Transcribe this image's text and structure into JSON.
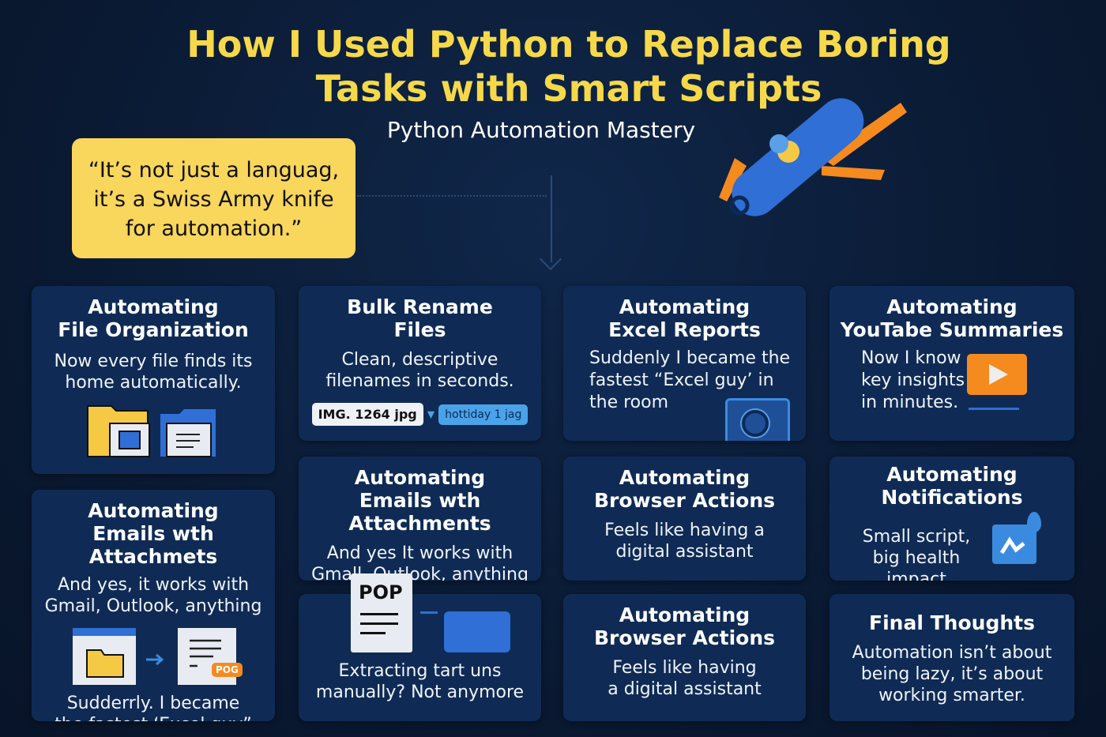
{
  "header": {
    "title_line1": "How I Used Python to Replace Boring",
    "title_line2": "Tasks with Smart Scripts",
    "subtitle": "Python Automation Mastery"
  },
  "quote": {
    "line1": "“It’s not just a languag,",
    "line2": "it’s a Swiss Army knife",
    "line3": "for automation.”"
  },
  "colors": {
    "background": "#0a1a33",
    "card": "#0f2b55",
    "title": "#f6d94a",
    "quote_bg": "#f9d65c",
    "accent_orange": "#f58a1f",
    "accent_blue": "#2f6fd6"
  },
  "cards": [
    {
      "title1": "Automating",
      "title2": "File Organization",
      "desc1": "Now every file finds its",
      "desc2": "home automatically.",
      "icon": "folders-icon"
    },
    {
      "title1": "Automating",
      "title2": "Emails wth Attachmets",
      "desc1": "And yes, it works with",
      "desc2": "Gmail, Outlook, anything",
      "desc3": "Sudderrly. I became",
      "desc4": "the fastest ‘Excel guy”",
      "badge": "POG",
      "icon": "folder-to-document-icon"
    },
    {
      "title1": "Bulk Rename",
      "title2": "Files",
      "desc1": "Clean, descriptive",
      "desc2": "filenames in seconds.",
      "old_name": "IMG. 1264 jpg",
      "new_name": "hottiday 1 jag"
    },
    {
      "title1": "Automating",
      "title2": "Emails wth Attachments",
      "desc1": "And yes  It works with",
      "desc2": "Gmall, Outlook, anything"
    },
    {
      "doc_label": "POP",
      "desc1": "Extracting tart uns",
      "desc2": "manually? Not anymore",
      "icon": "pdf-to-folder-icon"
    },
    {
      "title1": "Automating",
      "title2": "Excel Reports",
      "desc1": "Suddenly  I became the",
      "desc2": "fastest “Excel guy’ in",
      "desc3": "the room",
      "icon": "magnifier-icon"
    },
    {
      "title1": "Automating",
      "title2": "Browser Actions",
      "desc1": "Feels like having a",
      "desc2": "digital assistant"
    },
    {
      "title1": "Automating",
      "title2": "Browser Actions",
      "desc1": "Feels like having",
      "desc2": "a digital assistant"
    },
    {
      "title1": "Automating",
      "title2": "YouTabe Summaries",
      "desc1": "Now I know",
      "desc2": "key insights",
      "desc3": "in minutes.",
      "icon": "play-icon"
    },
    {
      "title1": "Automating",
      "title2": "Notifications",
      "desc1": "Small script,",
      "desc2": "big health",
      "desc3": "impact",
      "icon": "health-chart-icon"
    },
    {
      "title1": "Final Thoughts",
      "desc1": "Automation isn’t about",
      "desc2": "being lazy, it’s about",
      "desc3": "working smarter."
    }
  ]
}
